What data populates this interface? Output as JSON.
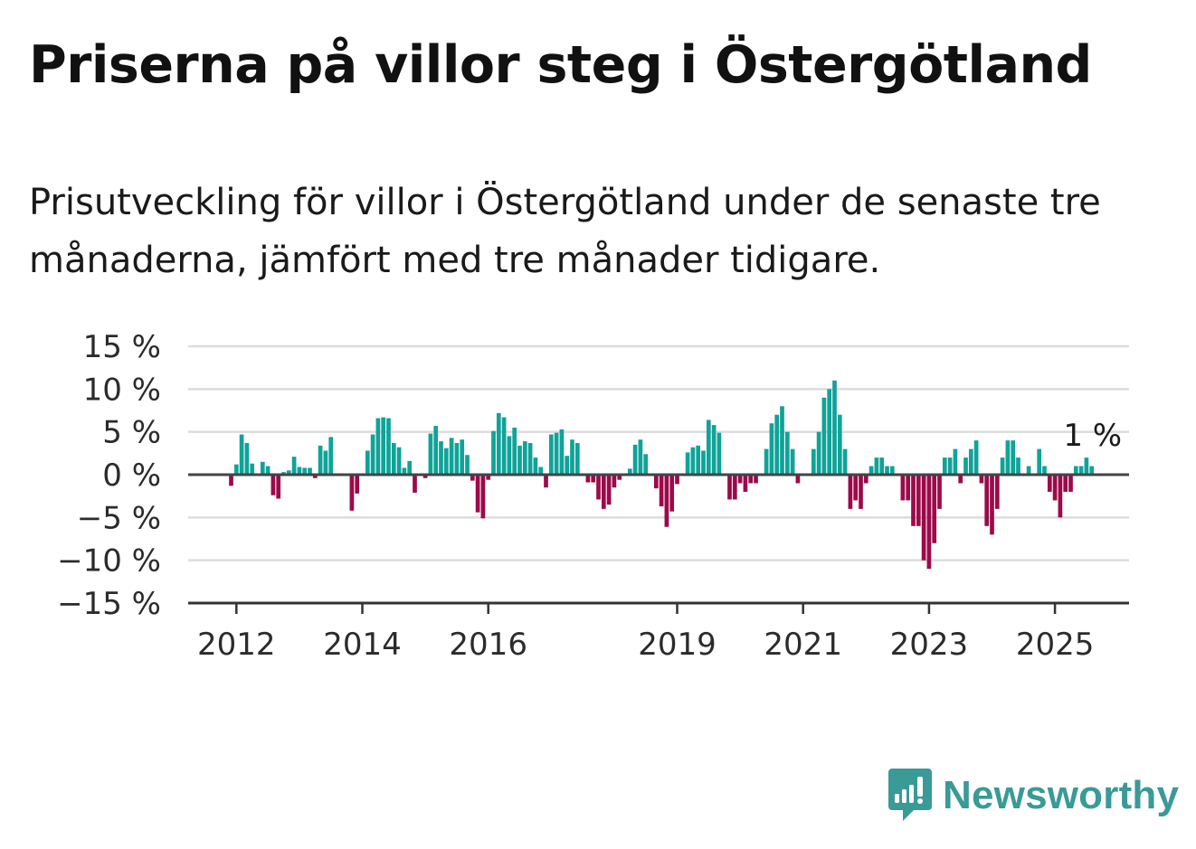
{
  "title": "Priserna på villor steg i Östergötland",
  "subtitle": "Prisutveckling för villor i Östergötland under de senaste tre månaderna, jämfört med tre månader tidigare.",
  "brand": {
    "name": "Newsworthy",
    "icon": "newsworthy-logo-icon",
    "color": "#3a9a96"
  },
  "chart_data": {
    "type": "bar",
    "ylim": [
      -15,
      15
    ],
    "yticks": [
      15,
      10,
      5,
      0,
      -5,
      -10,
      -15
    ],
    "ytick_labels": [
      "15 %",
      "10 %",
      "5 %",
      "0 %",
      "−5 %",
      "−10 %",
      "−15 %"
    ],
    "xticks": [
      {
        "label": "2012",
        "index": 1
      },
      {
        "label": "2014",
        "index": 25
      },
      {
        "label": "2016",
        "index": 49
      },
      {
        "label": "2019",
        "index": 85
      },
      {
        "label": "2021",
        "index": 109
      },
      {
        "label": "2023",
        "index": 133
      },
      {
        "label": "2025",
        "index": 157
      }
    ],
    "x_start": "2011-12",
    "values": [
      -1.3,
      1.2,
      4.7,
      3.7,
      1.3,
      0,
      1.5,
      1,
      -2.4,
      -2.8,
      0.3,
      0.5,
      2.1,
      0.9,
      0.8,
      0.8,
      -0.4,
      3.4,
      2.8,
      4.4,
      0,
      0,
      0,
      -4.2,
      -2.2,
      0,
      2.8,
      4.7,
      6.6,
      6.7,
      6.6,
      3.7,
      3.2,
      0.8,
      1.6,
      -2.1,
      0,
      -0.4,
      4.8,
      5.7,
      3.9,
      3.1,
      4.3,
      3.7,
      4.1,
      2.3,
      -0.7,
      -4.4,
      -5.1,
      -0.6,
      5.1,
      7.2,
      6.7,
      4.5,
      5.5,
      3.4,
      3.9,
      3.7,
      2,
      0.9,
      -1.5,
      4.7,
      4.9,
      5.3,
      2.2,
      4.1,
      3.7,
      0,
      -0.9,
      -0.9,
      -2.9,
      -4,
      -3.5,
      -1.5,
      -0.6,
      0,
      0.7,
      3.5,
      4.1,
      2.4,
      0,
      -1.6,
      -3.7,
      -6.1,
      -4.3,
      -1.1,
      0,
      2.6,
      3.2,
      3.4,
      2.8,
      6.4,
      5.8,
      4.9,
      0,
      -2.9,
      -2.9,
      -1,
      -2,
      -1,
      -1,
      0,
      3,
      6,
      7,
      8,
      5,
      3,
      -1,
      0,
      0,
      3,
      5,
      9,
      10,
      11,
      7,
      3,
      -4,
      -3,
      -4,
      -1,
      1,
      2,
      2,
      1,
      1,
      0,
      -3,
      -3,
      -6,
      -6,
      -10,
      -11,
      -8,
      -4,
      2,
      2,
      3,
      -1,
      2,
      3,
      4,
      -1,
      -6,
      -7,
      -4,
      2,
      4,
      4,
      2,
      0,
      1,
      0,
      3,
      1,
      -2,
      -3,
      -5,
      -2,
      -2,
      1,
      1,
      2,
      1
    ],
    "positive_color": "#0fa399",
    "negative_color": "#9b0a4a",
    "end_label": "1 %",
    "grid": true,
    "legend": "none"
  }
}
